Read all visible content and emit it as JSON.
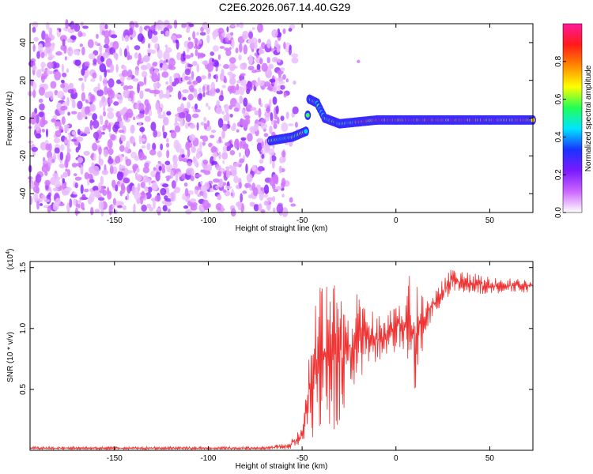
{
  "title": "C2E6.2026.067.14.40.G29",
  "chart_data": [
    {
      "type": "heatmap",
      "xlabel": "Height of straight line (km)",
      "ylabel": "Frequency (Hz)",
      "xlim": [
        -195,
        73
      ],
      "ylim": [
        -50,
        50
      ],
      "x_ticks": [
        -150,
        -100,
        -50,
        0,
        50
      ],
      "x_tick_labels": [
        "-150",
        "-100",
        "-50",
        "0",
        "50"
      ],
      "y_ticks": [
        40,
        20,
        0,
        -20,
        -40
      ],
      "y_tick_labels": [
        "40",
        "20",
        "0",
        "-20",
        "-40"
      ],
      "colorbar": {
        "label": "Normalized spectral amplitude",
        "range": [
          0,
          1
        ],
        "ticks": [
          0.0,
          0.2,
          0.4,
          0.6,
          0.8
        ],
        "tick_labels": [
          "0.0",
          "0.2",
          "0.4",
          "0.6",
          "0.8"
        ],
        "colormap": [
          "#ffffff",
          "#cc66ff",
          "#7a1aff",
          "#1a33ff",
          "#00e5ff",
          "#22ff55",
          "#ffff00",
          "#ff8800",
          "#ff1a1a",
          "#ff1a9c"
        ]
      },
      "features": [
        {
          "name": "noise",
          "x_range": [
            -195,
            -60
          ],
          "f_range": [
            -50,
            50
          ],
          "amplitude": 0.15
        },
        {
          "name": "track",
          "points": [
            [
              -67,
              -12
            ],
            [
              -55,
              -10
            ],
            [
              -48,
              -7
            ],
            [
              -46,
              10
            ],
            [
              -42,
              8
            ],
            [
              -38,
              0
            ],
            [
              -30,
              -3
            ],
            [
              -20,
              -2
            ],
            [
              -10,
              -1
            ],
            [
              0,
              -1
            ],
            [
              10,
              -1
            ],
            [
              30,
              -1
            ],
            [
              50,
              -1
            ],
            [
              73,
              -1
            ]
          ]
        }
      ],
      "outlier": {
        "x": -20,
        "y": 30
      }
    },
    {
      "type": "line",
      "xlabel": "Height of straight line (km)",
      "ylabel": "SNR (10 * v/v)",
      "y_multiplier_label": "(x10",
      "y_multiplier_exp": "4",
      "xlim": [
        -195,
        73
      ],
      "ylim": [
        0,
        1.55
      ],
      "x_ticks": [
        -150,
        -100,
        -50,
        0,
        50
      ],
      "x_tick_labels": [
        "-150",
        "-100",
        "-50",
        "0",
        "50"
      ],
      "y_ticks": [
        0.5,
        1.0,
        1.5
      ],
      "y_tick_labels": [
        "0.5",
        "1.0",
        "1.5"
      ],
      "color": "#ee3333",
      "envelope": [
        {
          "x": -195,
          "low": 0.005,
          "high": 0.03
        },
        {
          "x": -70,
          "low": 0.005,
          "high": 0.03
        },
        {
          "x": -58,
          "low": 0.01,
          "high": 0.06
        },
        {
          "x": -50,
          "low": 0.02,
          "high": 0.2
        },
        {
          "x": -45,
          "low": 0.05,
          "high": 1.2
        },
        {
          "x": -40,
          "low": 0.2,
          "high": 1.35
        },
        {
          "x": -35,
          "low": 0.15,
          "high": 1.35
        },
        {
          "x": -30,
          "low": 0.2,
          "high": 1.4
        },
        {
          "x": -25,
          "low": 0.45,
          "high": 1.2
        },
        {
          "x": -20,
          "low": 0.6,
          "high": 1.3
        },
        {
          "x": -10,
          "low": 0.7,
          "high": 1.1
        },
        {
          "x": 0,
          "low": 0.8,
          "high": 1.2
        },
        {
          "x": 5,
          "low": 0.8,
          "high": 1.35
        },
        {
          "x": 10,
          "low": 0.45,
          "high": 1.55
        },
        {
          "x": 15,
          "low": 0.9,
          "high": 1.25
        },
        {
          "x": 20,
          "low": 1.1,
          "high": 1.3
        },
        {
          "x": 30,
          "low": 1.3,
          "high": 1.5
        },
        {
          "x": 50,
          "low": 1.28,
          "high": 1.42
        },
        {
          "x": 73,
          "low": 1.3,
          "high": 1.4
        }
      ]
    }
  ]
}
